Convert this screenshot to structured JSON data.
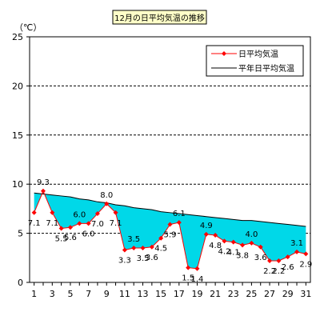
{
  "chart_data": {
    "type": "line",
    "title": "12月の日平均気温の推移",
    "unit_label": "（℃）",
    "ylim": [
      0,
      25
    ],
    "yticks": [
      0,
      5,
      10,
      15,
      20,
      25
    ],
    "xticks": [
      1,
      3,
      5,
      7,
      9,
      11,
      13,
      15,
      17,
      19,
      21,
      23,
      25,
      27,
      29,
      31
    ],
    "grid": "horizontal-dashed",
    "legend_position": "top-right",
    "fill_between_color": "#00d8e8",
    "series": [
      {
        "name": "日平均気温",
        "color": "#ff0000",
        "marker": "diamond",
        "x": [
          1,
          2,
          3,
          4,
          5,
          6,
          7,
          8,
          9,
          10,
          11,
          12,
          13,
          14,
          15,
          16,
          17,
          18,
          19,
          20,
          21,
          22,
          23,
          24,
          25,
          26,
          27,
          28,
          29,
          30,
          31
        ],
        "values": [
          7.1,
          9.3,
          7.1,
          5.5,
          5.6,
          6.0,
          6.0,
          7.0,
          8.0,
          7.1,
          3.3,
          3.5,
          3.5,
          3.6,
          4.5,
          5.9,
          6.1,
          1.5,
          1.4,
          4.9,
          4.8,
          4.2,
          4.1,
          3.8,
          4.0,
          3.6,
          2.2,
          2.2,
          2.6,
          3.1,
          2.9
        ],
        "labels": [
          "7.1",
          "9.3",
          "7.1",
          "5.5",
          "5.6",
          "6.0",
          "6.0",
          "7.0",
          "8.0",
          "7.1",
          "3.3",
          "3.5",
          "3.5",
          "3.6",
          "4.5",
          "5.9",
          "6.1",
          "1.5",
          "1.4",
          "4.9",
          "4.8",
          "4.2",
          "4.1",
          "3.8",
          "4.0",
          "3.6",
          "2.2",
          "2.2",
          "2.6",
          "3.1",
          "2.9"
        ]
      },
      {
        "name": "平年日平均気温",
        "color": "#000000",
        "x": [
          1,
          2,
          3,
          4,
          5,
          6,
          7,
          8,
          9,
          10,
          11,
          12,
          13,
          14,
          15,
          16,
          17,
          18,
          19,
          20,
          21,
          22,
          23,
          24,
          25,
          26,
          27,
          28,
          29,
          30,
          31
        ],
        "values": [
          9.1,
          9.0,
          8.9,
          8.8,
          8.7,
          8.5,
          8.4,
          8.2,
          8.1,
          7.9,
          7.8,
          7.6,
          7.5,
          7.4,
          7.2,
          7.1,
          7.0,
          6.9,
          6.8,
          6.7,
          6.6,
          6.5,
          6.4,
          6.3,
          6.3,
          6.2,
          6.1,
          6.0,
          5.9,
          5.8,
          5.7
        ]
      }
    ]
  }
}
